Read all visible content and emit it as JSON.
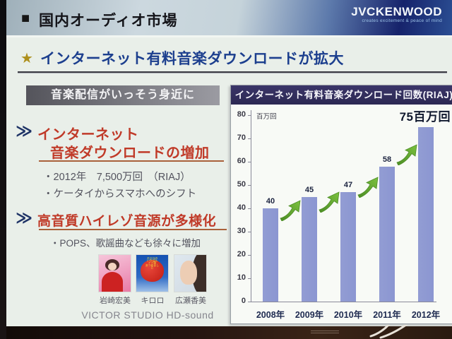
{
  "header": {
    "square": "■",
    "title": "国内オーディオ市場",
    "logo_name": "JVCKENWOOD",
    "logo_tagline": "creates excitement & peace of mind"
  },
  "headline": {
    "star": "★",
    "text": "インターネット有料音楽ダウンロードが拡大"
  },
  "left_panel": {
    "banner": "音楽配信がいっそう身近に",
    "sections": [
      {
        "chevron": "≫",
        "title_lines": [
          "インターネット",
          "音楽ダウンロードの増加"
        ],
        "bullets": [
          "・2012年　7,500万回　（RIAJ）",
          "・ケータイからスマホへのシフト"
        ]
      },
      {
        "chevron": "≫",
        "title_lines": [
          "高音質ハイレゾ音源が多様化"
        ],
        "bullets": [
          "・POPS、歌謡曲なども徐々に増加"
        ]
      }
    ],
    "albums": [
      {
        "caption": "岩崎宏美",
        "cover": "pink-singer-cover"
      },
      {
        "caption": "キロロ",
        "cover": "red-apple-cover",
        "cover_text": "キロロの\nいちばん\nイイ歌\nあつめました"
      },
      {
        "caption": "広瀬香美",
        "cover": "face-portrait-cover"
      }
    ],
    "footer": "VICTOR STUDIO HD-sound"
  },
  "chart_data": {
    "type": "bar",
    "title": "インターネット有料音楽ダウンロード回数(RIAJ)",
    "categories": [
      "2008年",
      "2009年",
      "2010年",
      "2011年",
      "2012年"
    ],
    "values": [
      40,
      45,
      47,
      58,
      75
    ],
    "bar_value_labels": [
      "40",
      "45",
      "47",
      "58",
      ""
    ],
    "highlight_label": "75百万回",
    "unit_label": "百万回",
    "xlabel": "",
    "ylabel": "百万回",
    "ylim": [
      0,
      80
    ],
    "ytick_step": 10,
    "grid": false,
    "legend": false,
    "bar_color": "#8b96d1",
    "arrow_color_light": "#7cc13f",
    "arrow_color_dark": "#4c8d25"
  }
}
